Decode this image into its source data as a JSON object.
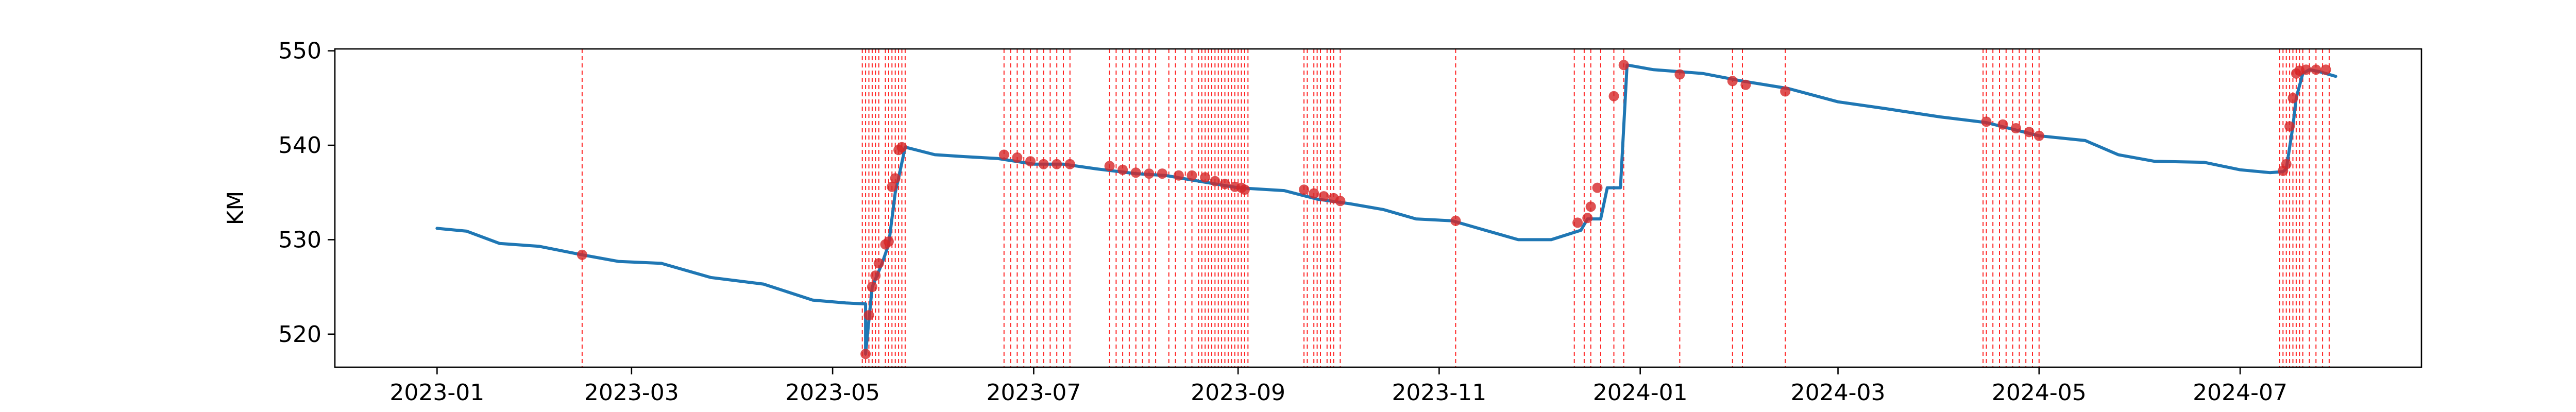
{
  "chart_data": {
    "type": "line",
    "title": "",
    "xlabel": "",
    "ylabel": "KM",
    "ylim": [
      516.5,
      550.2
    ],
    "xlim": [
      "2022-12-01",
      "2024-08-25"
    ],
    "yticks": [
      520,
      530,
      540,
      550
    ],
    "xticks": [
      "2023-01-01",
      "2023-03-01",
      "2023-05-01",
      "2023-07-01",
      "2023-09-01",
      "2023-11-01",
      "2024-01-01",
      "2024-03-01",
      "2024-05-01",
      "2024-07-01"
    ],
    "xtick_labels": [
      "2023-01",
      "2023-03",
      "2023-05",
      "2023-07",
      "2023-09",
      "2023-11",
      "2024-01",
      "2024-03",
      "2024-05",
      "2024-07"
    ],
    "grid": false,
    "colors": {
      "line": "#1f77b4",
      "marker": "#d62728",
      "vline": "#ff0000",
      "axes": "#000000"
    },
    "series": [
      {
        "kind": "line",
        "x": [
          "2023-01-01",
          "2023-01-10",
          "2023-01-20",
          "2023-02-01",
          "2023-02-14",
          "2023-02-25",
          "2023-03-10",
          "2023-03-25",
          "2023-04-10",
          "2023-04-25",
          "2023-05-05",
          "2023-05-11",
          "2023-05-11",
          "2023-05-13",
          "2023-05-16",
          "2023-05-18",
          "2023-05-20",
          "2023-05-21",
          "2023-05-23",
          "2023-06-01",
          "2023-06-10",
          "2023-06-20",
          "2023-07-01",
          "2023-07-10",
          "2023-07-20",
          "2023-08-01",
          "2023-08-10",
          "2023-08-20",
          "2023-09-01",
          "2023-09-15",
          "2023-09-25",
          "2023-10-05",
          "2023-10-15",
          "2023-10-25",
          "2023-11-05",
          "2023-11-15",
          "2023-11-25",
          "2023-12-05",
          "2023-12-14",
          "2023-12-16",
          "2023-12-20",
          "2023-12-22",
          "2023-12-26",
          "2023-12-28",
          "2024-01-05",
          "2024-01-20",
          "2024-02-01",
          "2024-02-15",
          "2024-03-01",
          "2024-03-15",
          "2024-04-01",
          "2024-04-15",
          "2024-05-01",
          "2024-05-15",
          "2024-05-25",
          "2024-06-05",
          "2024-06-20",
          "2024-07-01",
          "2024-07-10",
          "2024-07-14",
          "2024-07-15",
          "2024-07-17",
          "2024-07-18",
          "2024-07-20",
          "2024-07-22",
          "2024-07-25",
          "2024-07-30"
        ],
        "y": [
          531.2,
          530.9,
          529.6,
          529.3,
          528.4,
          527.7,
          527.5,
          526.0,
          525.3,
          523.6,
          523.3,
          523.2,
          517.9,
          525.0,
          527.5,
          529.5,
          535.0,
          536.5,
          539.8,
          539.0,
          538.8,
          538.6,
          538.0,
          538.0,
          537.5,
          537.0,
          536.8,
          536.2,
          535.5,
          535.2,
          534.3,
          533.8,
          533.2,
          532.2,
          532.0,
          531.0,
          530.0,
          530.0,
          531.0,
          532.2,
          532.2,
          535.5,
          535.5,
          548.5,
          548.0,
          547.6,
          546.8,
          546.0,
          544.6,
          543.9,
          543.0,
          542.4,
          541.0,
          540.5,
          539.0,
          538.3,
          538.2,
          537.4,
          537.1,
          537.2,
          537.5,
          542.0,
          545.0,
          547.6,
          548.0,
          547.8,
          547.3
        ]
      },
      {
        "kind": "markers",
        "x": [
          "2023-02-14",
          "2023-05-11",
          "2023-05-12",
          "2023-05-13",
          "2023-05-14",
          "2023-05-15",
          "2023-05-17",
          "2023-05-18",
          "2023-05-19",
          "2023-05-20",
          "2023-05-21",
          "2023-05-22",
          "2023-06-22",
          "2023-06-26",
          "2023-06-30",
          "2023-07-04",
          "2023-07-08",
          "2023-07-12",
          "2023-07-24",
          "2023-07-28",
          "2023-08-01",
          "2023-08-05",
          "2023-08-09",
          "2023-08-14",
          "2023-08-18",
          "2023-08-22",
          "2023-08-25",
          "2023-08-28",
          "2023-08-31",
          "2023-09-02",
          "2023-09-03",
          "2023-09-21",
          "2023-09-24",
          "2023-09-27",
          "2023-09-30",
          "2023-10-02",
          "2023-11-06",
          "2023-12-13",
          "2023-12-16",
          "2023-12-17",
          "2023-12-19",
          "2023-12-24",
          "2023-12-27",
          "2024-01-13",
          "2024-01-29",
          "2024-02-02",
          "2024-02-14",
          "2024-04-15",
          "2024-04-20",
          "2024-04-24",
          "2024-04-28",
          "2024-05-01",
          "2024-07-14",
          "2024-07-15",
          "2024-07-16",
          "2024-07-17",
          "2024-07-18",
          "2024-07-19",
          "2024-07-21",
          "2024-07-24",
          "2024-07-27"
        ],
        "y": [
          528.4,
          517.9,
          522.0,
          525.0,
          526.2,
          527.5,
          529.5,
          529.8,
          535.6,
          536.5,
          539.5,
          539.8,
          539.0,
          538.7,
          538.3,
          538.0,
          538.0,
          538.0,
          537.8,
          537.4,
          537.1,
          537.0,
          537.0,
          536.8,
          536.8,
          536.6,
          536.2,
          535.9,
          535.6,
          535.5,
          535.3,
          535.3,
          534.9,
          534.6,
          534.4,
          534.1,
          532.0,
          531.8,
          532.3,
          533.5,
          535.5,
          545.2,
          548.5,
          547.5,
          546.8,
          546.4,
          545.7,
          542.5,
          542.2,
          541.8,
          541.4,
          541.0,
          537.3,
          538.0,
          542.0,
          545.0,
          547.6,
          547.9,
          548.0,
          548.0,
          548.0
        ]
      },
      {
        "kind": "vlines",
        "x": [
          "2023-02-14",
          "2023-05-10",
          "2023-05-11",
          "2023-05-12",
          "2023-05-13",
          "2023-05-14",
          "2023-05-15",
          "2023-05-17",
          "2023-05-18",
          "2023-05-19",
          "2023-05-20",
          "2023-05-21",
          "2023-05-22",
          "2023-05-23",
          "2023-06-22",
          "2023-06-24",
          "2023-06-26",
          "2023-06-28",
          "2023-06-30",
          "2023-07-02",
          "2023-07-04",
          "2023-07-06",
          "2023-07-08",
          "2023-07-10",
          "2023-07-12",
          "2023-07-24",
          "2023-07-26",
          "2023-07-28",
          "2023-07-30",
          "2023-08-01",
          "2023-08-03",
          "2023-08-05",
          "2023-08-07",
          "2023-08-11",
          "2023-08-13",
          "2023-08-16",
          "2023-08-18",
          "2023-08-20",
          "2023-08-21",
          "2023-08-22",
          "2023-08-23",
          "2023-08-24",
          "2023-08-25",
          "2023-08-26",
          "2023-08-27",
          "2023-08-28",
          "2023-08-29",
          "2023-08-30",
          "2023-08-31",
          "2023-09-01",
          "2023-09-02",
          "2023-09-03",
          "2023-09-04",
          "2023-09-21",
          "2023-09-22",
          "2023-09-24",
          "2023-09-25",
          "2023-09-26",
          "2023-09-28",
          "2023-09-29",
          "2023-09-30",
          "2023-10-02",
          "2023-11-06",
          "2023-12-12",
          "2023-12-15",
          "2023-12-17",
          "2023-12-20",
          "2023-12-24",
          "2023-12-27",
          "2024-01-13",
          "2024-01-29",
          "2024-02-01",
          "2024-02-14",
          "2024-04-14",
          "2024-04-15",
          "2024-04-17",
          "2024-04-19",
          "2024-04-21",
          "2024-04-23",
          "2024-04-25",
          "2024-04-27",
          "2024-04-29",
          "2024-05-01",
          "2024-07-13",
          "2024-07-14",
          "2024-07-15",
          "2024-07-16",
          "2024-07-17",
          "2024-07-18",
          "2024-07-19",
          "2024-07-20",
          "2024-07-22",
          "2024-07-24",
          "2024-07-26",
          "2024-07-28"
        ]
      }
    ]
  }
}
